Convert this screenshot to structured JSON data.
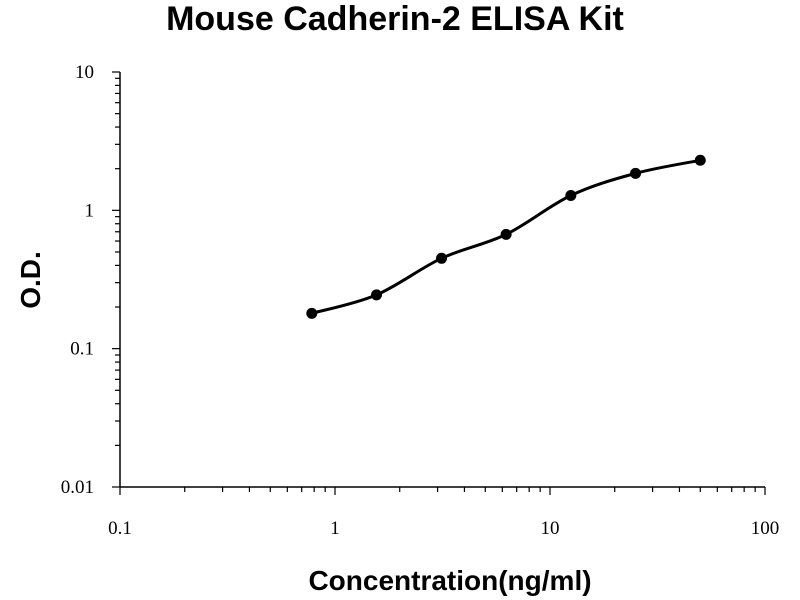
{
  "chart_data": {
    "type": "scatter",
    "title": "Mouse Cadherin-2 ELISA Kit",
    "xlabel": "Concentration(ng/ml)",
    "ylabel": "O.D.",
    "xscale": "log",
    "yscale": "log",
    "xlim": [
      0.1,
      100
    ],
    "ylim": [
      0.01,
      10
    ],
    "x_ticks": [
      "0.1",
      "1",
      "10",
      "100"
    ],
    "y_ticks": [
      "0.01",
      "0.1",
      "1",
      "10"
    ],
    "grid": false,
    "legend": "none",
    "series": [
      {
        "points": [
          {
            "x": 0.78,
            "y": 0.18
          },
          {
            "x": 1.56,
            "y": 0.245
          },
          {
            "x": 3.13,
            "y": 0.45
          },
          {
            "x": 6.25,
            "y": 0.67
          },
          {
            "x": 12.5,
            "y": 1.28
          },
          {
            "x": 25,
            "y": 1.85
          },
          {
            "x": 50,
            "y": 2.3
          }
        ],
        "fit_curve": true,
        "color": "#000000"
      }
    ]
  }
}
